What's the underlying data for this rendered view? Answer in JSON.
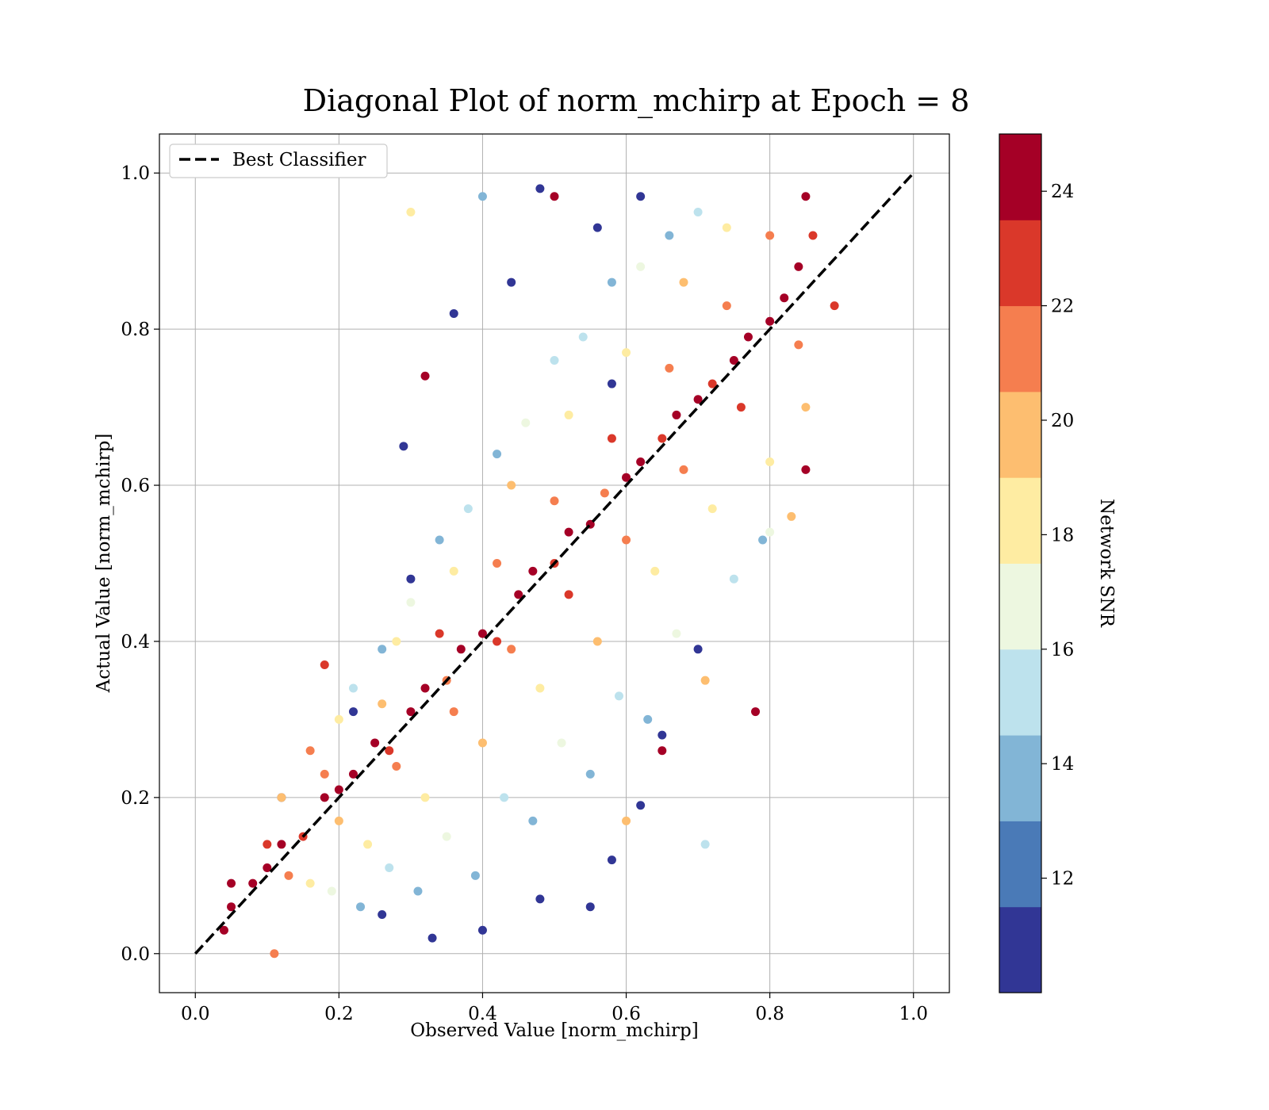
{
  "chart_data": {
    "type": "scatter",
    "title": "Diagonal Plot of norm_mchirp at Epoch = 8",
    "xlabel": "Observed Value [norm_mchirp]",
    "ylabel": "Actual Value [norm_mchirp]",
    "xlim": [
      -0.05,
      1.05
    ],
    "ylim": [
      -0.05,
      1.05
    ],
    "xticks": [
      "0.0",
      "0.2",
      "0.4",
      "0.6",
      "0.8",
      "1.0"
    ],
    "yticks": [
      "0.0",
      "0.2",
      "0.4",
      "0.6",
      "0.8",
      "1.0"
    ],
    "grid": true,
    "legend": {
      "placement": "top-left",
      "entries": [
        {
          "label": "Best Classifier",
          "style": "dashed",
          "color": "#000000"
        }
      ]
    },
    "reference_line": {
      "label": "Best Classifier",
      "x": [
        0.0,
        1.0
      ],
      "y": [
        0.0,
        1.0
      ]
    },
    "colorbar": {
      "label": "Network SNR",
      "range": [
        10,
        25
      ],
      "ticks": [
        "12",
        "14",
        "16",
        "18",
        "20",
        "22",
        "24"
      ],
      "bins": [
        {
          "from": 10.0,
          "to": 11.5,
          "color": "#313695"
        },
        {
          "from": 11.5,
          "to": 13.0,
          "color": "#4a7ab7"
        },
        {
          "from": 13.0,
          "to": 14.5,
          "color": "#82b5d6"
        },
        {
          "from": 14.5,
          "to": 16.0,
          "color": "#bde2ed"
        },
        {
          "from": 16.0,
          "to": 17.5,
          "color": "#edf7e0"
        },
        {
          "from": 17.5,
          "to": 19.0,
          "color": "#feeca2"
        },
        {
          "from": 19.0,
          "to": 20.5,
          "color": "#fdbe70"
        },
        {
          "from": 20.5,
          "to": 22.0,
          "color": "#f57e4f"
        },
        {
          "from": 22.0,
          "to": 23.5,
          "color": "#da382a"
        },
        {
          "from": 23.5,
          "to": 25.0,
          "color": "#a50026"
        }
      ]
    },
    "points": [
      [
        0.05,
        0.06,
        24.5
      ],
      [
        0.08,
        0.09,
        24.2
      ],
      [
        0.1,
        0.11,
        23.8
      ],
      [
        0.12,
        0.14,
        24.6
      ],
      [
        0.15,
        0.15,
        22.8
      ],
      [
        0.18,
        0.2,
        24.9
      ],
      [
        0.2,
        0.21,
        24.1
      ],
      [
        0.22,
        0.23,
        23.5
      ],
      [
        0.25,
        0.27,
        24.7
      ],
      [
        0.27,
        0.26,
        22.2
      ],
      [
        0.3,
        0.31,
        24.4
      ],
      [
        0.32,
        0.34,
        24.8
      ],
      [
        0.35,
        0.35,
        21.5
      ],
      [
        0.37,
        0.39,
        24.3
      ],
      [
        0.4,
        0.41,
        24.6
      ],
      [
        0.42,
        0.4,
        22.6
      ],
      [
        0.45,
        0.46,
        24.9
      ],
      [
        0.47,
        0.49,
        24.0
      ],
      [
        0.5,
        0.5,
        23.1
      ],
      [
        0.52,
        0.54,
        24.7
      ],
      [
        0.55,
        0.55,
        24.2
      ],
      [
        0.57,
        0.59,
        20.8
      ],
      [
        0.6,
        0.61,
        24.5
      ],
      [
        0.62,
        0.63,
        24.8
      ],
      [
        0.65,
        0.66,
        23.4
      ],
      [
        0.67,
        0.69,
        24.1
      ],
      [
        0.7,
        0.71,
        24.9
      ],
      [
        0.72,
        0.73,
        22.0
      ],
      [
        0.75,
        0.76,
        24.6
      ],
      [
        0.77,
        0.79,
        24.3
      ],
      [
        0.8,
        0.81,
        23.7
      ],
      [
        0.82,
        0.84,
        24.8
      ],
      [
        0.84,
        0.88,
        24.4
      ],
      [
        0.86,
        0.92,
        22.9
      ],
      [
        0.85,
        0.97,
        24.6
      ],
      [
        0.13,
        0.1,
        21.2
      ],
      [
        0.2,
        0.17,
        20.1
      ],
      [
        0.28,
        0.24,
        21.8
      ],
      [
        0.36,
        0.31,
        20.5
      ],
      [
        0.44,
        0.39,
        21.4
      ],
      [
        0.52,
        0.46,
        22.4
      ],
      [
        0.6,
        0.53,
        21.1
      ],
      [
        0.68,
        0.62,
        20.6
      ],
      [
        0.76,
        0.7,
        22.1
      ],
      [
        0.84,
        0.78,
        21.7
      ],
      [
        0.1,
        0.14,
        22.3
      ],
      [
        0.18,
        0.23,
        21.0
      ],
      [
        0.26,
        0.32,
        20.4
      ],
      [
        0.34,
        0.41,
        22.6
      ],
      [
        0.42,
        0.5,
        21.3
      ],
      [
        0.5,
        0.58,
        20.9
      ],
      [
        0.58,
        0.66,
        22.2
      ],
      [
        0.66,
        0.75,
        21.6
      ],
      [
        0.74,
        0.83,
        20.7
      ],
      [
        0.8,
        0.92,
        21.9
      ],
      [
        0.16,
        0.09,
        18.6
      ],
      [
        0.24,
        0.14,
        17.9
      ],
      [
        0.32,
        0.2,
        18.8
      ],
      [
        0.4,
        0.27,
        19.2
      ],
      [
        0.48,
        0.34,
        18.1
      ],
      [
        0.56,
        0.4,
        19.0
      ],
      [
        0.64,
        0.49,
        18.4
      ],
      [
        0.72,
        0.57,
        17.7
      ],
      [
        0.8,
        0.63,
        18.9
      ],
      [
        0.85,
        0.7,
        19.4
      ],
      [
        0.12,
        0.2,
        19.1
      ],
      [
        0.2,
        0.3,
        18.2
      ],
      [
        0.28,
        0.4,
        18.7
      ],
      [
        0.36,
        0.49,
        17.6
      ],
      [
        0.44,
        0.6,
        19.3
      ],
      [
        0.52,
        0.69,
        18.5
      ],
      [
        0.6,
        0.77,
        17.8
      ],
      [
        0.68,
        0.86,
        19.0
      ],
      [
        0.74,
        0.93,
        18.3
      ],
      [
        0.19,
        0.08,
        16.4
      ],
      [
        0.27,
        0.11,
        15.6
      ],
      [
        0.35,
        0.15,
        16.8
      ],
      [
        0.43,
        0.2,
        15.2
      ],
      [
        0.51,
        0.27,
        16.1
      ],
      [
        0.59,
        0.33,
        15.8
      ],
      [
        0.67,
        0.41,
        16.6
      ],
      [
        0.75,
        0.48,
        15.4
      ],
      [
        0.8,
        0.54,
        16.9
      ],
      [
        0.22,
        0.34,
        15.9
      ],
      [
        0.3,
        0.45,
        16.3
      ],
      [
        0.38,
        0.57,
        15.5
      ],
      [
        0.46,
        0.68,
        16.7
      ],
      [
        0.54,
        0.79,
        15.1
      ],
      [
        0.62,
        0.88,
        16.2
      ],
      [
        0.7,
        0.95,
        15.7
      ],
      [
        0.23,
        0.06,
        13.6
      ],
      [
        0.31,
        0.08,
        14.2
      ],
      [
        0.39,
        0.1,
        13.1
      ],
      [
        0.47,
        0.17,
        14.4
      ],
      [
        0.55,
        0.23,
        13.8
      ],
      [
        0.63,
        0.3,
        14.1
      ],
      [
        0.71,
        0.14,
        14.9
      ],
      [
        0.79,
        0.53,
        13.4
      ],
      [
        0.26,
        0.39,
        13.9
      ],
      [
        0.34,
        0.53,
        14.3
      ],
      [
        0.42,
        0.64,
        13.2
      ],
      [
        0.5,
        0.76,
        14.6
      ],
      [
        0.58,
        0.86,
        13.7
      ],
      [
        0.4,
        0.97,
        14.0
      ],
      [
        0.66,
        0.92,
        13.3
      ],
      [
        0.26,
        0.05,
        10.8
      ],
      [
        0.33,
        0.02,
        11.3
      ],
      [
        0.4,
        0.03,
        10.5
      ],
      [
        0.48,
        0.07,
        11.1
      ],
      [
        0.55,
        0.06,
        10.9
      ],
      [
        0.58,
        0.12,
        11.4
      ],
      [
        0.62,
        0.19,
        10.6
      ],
      [
        0.65,
        0.28,
        11.2
      ],
      [
        0.7,
        0.39,
        10.7
      ],
      [
        0.12,
        0.2,
        11.0
      ],
      [
        0.22,
        0.31,
        10.9
      ],
      [
        0.3,
        0.48,
        11.3
      ],
      [
        0.29,
        0.65,
        10.6
      ],
      [
        0.36,
        0.82,
        11.2
      ],
      [
        0.44,
        0.86,
        10.8
      ],
      [
        0.48,
        0.98,
        11.0
      ],
      [
        0.56,
        0.93,
        10.5
      ],
      [
        0.62,
        0.97,
        11.4
      ],
      [
        0.58,
        0.73,
        10.9
      ],
      [
        0.89,
        0.83,
        23.2
      ],
      [
        0.78,
        0.31,
        24.4
      ],
      [
        0.65,
        0.26,
        23.9
      ],
      [
        0.18,
        0.37,
        22.7
      ],
      [
        0.5,
        0.97,
        24.1
      ],
      [
        0.85,
        0.62,
        24.7
      ],
      [
        0.32,
        0.74,
        24.3
      ],
      [
        0.16,
        0.26,
        21.3
      ],
      [
        0.11,
        0.0,
        21.0
      ],
      [
        0.6,
        0.17,
        20.3
      ],
      [
        0.83,
        0.56,
        19.2
      ],
      [
        0.3,
        0.95,
        17.5
      ],
      [
        0.71,
        0.35,
        20.2
      ],
      [
        0.05,
        0.09,
        24.0
      ],
      [
        0.04,
        0.03,
        24.8
      ]
    ]
  }
}
